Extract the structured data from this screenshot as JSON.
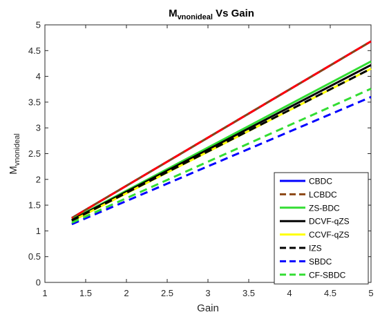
{
  "chart_data": {
    "type": "line",
    "title": "M",
    "title_sub": "vnonideal",
    "title_rest": " Vs Gain",
    "xlabel": "Gain",
    "ylabel": "M",
    "ylabel_sub": "vnonideal",
    "xlim": [
      1,
      5
    ],
    "ylim": [
      0,
      5
    ],
    "xticks": [
      1,
      1.5,
      2,
      2.5,
      3,
      3.5,
      4,
      4.5,
      5
    ],
    "xtick_labels": [
      "1",
      "1.5",
      "2",
      "2.5",
      "3",
      "3.5",
      "4",
      "4.5",
      "5"
    ],
    "yticks": [
      0,
      0.5,
      1,
      1.5,
      2,
      2.5,
      3,
      3.5,
      4,
      4.5,
      5
    ],
    "ytick_labels": [
      "0",
      "0.5",
      "1",
      "1.5",
      "2",
      "2.5",
      "3",
      "3.5",
      "4",
      "4.5",
      "5"
    ],
    "grid": false,
    "legend_position": "bottom-right",
    "series": [
      {
        "name": "CBDC",
        "color": "#0000ff",
        "dash": "solid",
        "x": [
          1.33,
          5
        ],
        "y": [
          1.25,
          4.68
        ]
      },
      {
        "name": "LCBDC",
        "color": "#8b4513",
        "dash": "dashed",
        "x": [
          1.33,
          5
        ],
        "y": [
          1.25,
          4.68
        ]
      },
      {
        "name": "ZS-BDC",
        "color": "#33dd33",
        "dash": "solid",
        "x": [
          1.33,
          5
        ],
        "y": [
          1.22,
          4.29
        ]
      },
      {
        "name": "DCVF-qZS",
        "color": "#000000",
        "dash": "solid",
        "x": [
          1.33,
          5
        ],
        "y": [
          1.21,
          4.22
        ]
      },
      {
        "name": "CCVF-qZS",
        "color": "#ffff00",
        "dash": "solid",
        "x": [
          1.33,
          5
        ],
        "y": [
          1.19,
          4.15
        ]
      },
      {
        "name": "IZS",
        "color": "#000000",
        "dash": "dashed",
        "x": [
          1.33,
          5
        ],
        "y": [
          1.2,
          4.15
        ]
      },
      {
        "name": "SBDC",
        "color": "#0000ff",
        "dash": "dashed",
        "x": [
          1.33,
          5
        ],
        "y": [
          1.13,
          3.6
        ]
      },
      {
        "name": "CF-SBDC",
        "color": "#33dd33",
        "dash": "dashed",
        "x": [
          1.33,
          5
        ],
        "y": [
          1.16,
          3.76
        ]
      }
    ],
    "overlay": {
      "color": "#ff0000",
      "dash": "dashed",
      "x": [
        1.33,
        5
      ],
      "y": [
        1.25,
        4.68
      ]
    }
  }
}
